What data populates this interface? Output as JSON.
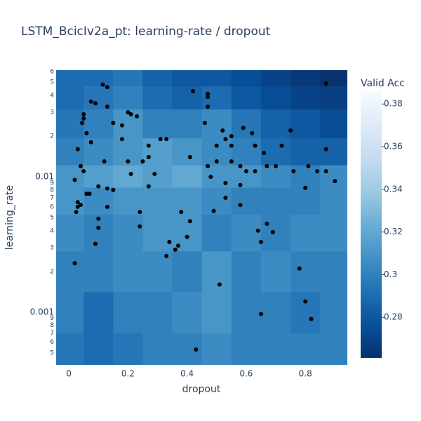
{
  "chart_data": {
    "type": "contour",
    "title": "LSTM_BcicIv2a_pt: learning-rate / dropout",
    "x_label": "dropout",
    "y_label": "learning_rate",
    "colorbar_title": "Valid Acc",
    "xlim": [
      -0.043,
      0.942
    ],
    "xticks": [
      0,
      0.2,
      0.4,
      0.6,
      0.8
    ],
    "ylim": [
      0.000408,
      0.0614
    ],
    "y_log": true,
    "yticks": [
      {
        "value": 0.0005,
        "label": "5"
      },
      {
        "value": 0.0006,
        "label": "6"
      },
      {
        "value": 0.0007,
        "label": "7"
      },
      {
        "value": 0.0008,
        "label": "8"
      },
      {
        "value": 0.0009,
        "label": "9"
      },
      0.001,
      {
        "value": 0.002,
        "label": "2"
      },
      {
        "value": 0.003,
        "label": "3"
      },
      {
        "value": 0.004,
        "label": "4"
      },
      {
        "value": 0.005,
        "label": "5"
      },
      {
        "value": 0.006,
        "label": "6"
      },
      {
        "value": 0.007,
        "label": "7"
      },
      {
        "value": 0.008,
        "label": "8"
      },
      {
        "value": 0.009,
        "label": "9"
      },
      0.01,
      {
        "value": 0.02,
        "label": "2"
      },
      {
        "value": 0.03,
        "label": "3"
      },
      {
        "value": 0.04,
        "label": "4"
      },
      {
        "value": 0.05,
        "label": "5"
      },
      {
        "value": 0.06,
        "label": "6"
      }
    ],
    "zlim": [
      0.261,
      0.386
    ],
    "zticks": [
      0.28,
      0.3,
      0.32,
      0.34,
      0.36,
      0.38
    ],
    "colorscale": [
      "#08306b",
      "#08519c",
      "#2171b5",
      "#4292c6",
      "#6baed6",
      "#9ecae1",
      "#c6dbef",
      "#deebf7",
      "#f7fbff"
    ],
    "contour": {
      "x": [
        0,
        0.1,
        0.2,
        0.3,
        0.4,
        0.5,
        0.6,
        0.7,
        0.8,
        0.9
      ],
      "y": [
        0.0005,
        0.001,
        0.002,
        0.004,
        0.007,
        0.01,
        0.015,
        0.025,
        0.04,
        0.055
      ],
      "z": [
        [
          0.295,
          0.29,
          0.295,
          0.3,
          0.3,
          0.305,
          0.3,
          0.3,
          0.3,
          0.3
        ],
        [
          0.3,
          0.29,
          0.3,
          0.3,
          0.305,
          0.31,
          0.3,
          0.3,
          0.295,
          0.3
        ],
        [
          0.3,
          0.3,
          0.305,
          0.305,
          0.3,
          0.31,
          0.3,
          0.305,
          0.3,
          0.3
        ],
        [
          0.305,
          0.3,
          0.305,
          0.31,
          0.31,
          0.3,
          0.305,
          0.3,
          0.305,
          0.305
        ],
        [
          0.31,
          0.305,
          0.31,
          0.31,
          0.31,
          0.305,
          0.3,
          0.3,
          0.3,
          0.305
        ],
        [
          0.31,
          0.315,
          0.32,
          0.315,
          0.32,
          0.31,
          0.31,
          0.305,
          0.3,
          0.305
        ],
        [
          0.3,
          0.305,
          0.31,
          0.315,
          0.31,
          0.305,
          0.3,
          0.29,
          0.285,
          0.285
        ],
        [
          0.295,
          0.3,
          0.31,
          0.3,
          0.3,
          0.305,
          0.295,
          0.285,
          0.28,
          0.275
        ],
        [
          0.29,
          0.295,
          0.3,
          0.29,
          0.285,
          0.29,
          0.28,
          0.275,
          0.27,
          0.268
        ],
        [
          0.29,
          0.29,
          0.295,
          0.285,
          0.28,
          0.28,
          0.275,
          0.27,
          0.265,
          0.262
        ]
      ]
    },
    "points": {
      "color": "#000000",
      "x": [
        0.115,
        0.13,
        0.075,
        0.09,
        0.13,
        0.05,
        0.05,
        0.045,
        0.15,
        0.18,
        0.2,
        0.21,
        0.23,
        0.06,
        0.18,
        0.31,
        0.33,
        0.075,
        0.03,
        0.27,
        0.42,
        0.47,
        0.47,
        0.47,
        0.46,
        0.52,
        0.59,
        0.62,
        0.5,
        0.55,
        0.53,
        0.55,
        0.63,
        0.66,
        0.72,
        0.75,
        0.87,
        0.87,
        0.04,
        0.12,
        0.2,
        0.25,
        0.27,
        0.41,
        0.47,
        0.5,
        0.55,
        0.58,
        0.6,
        0.63,
        0.67,
        0.7,
        0.76,
        0.81,
        0.84,
        0.87,
        0.9,
        0.8,
        0.05,
        0.02,
        0.21,
        0.29,
        0.48,
        0.53,
        0.58,
        0.1,
        0.13,
        0.15,
        0.27,
        0.07,
        0.06,
        0.03,
        0.03,
        0.04,
        0.025,
        0.13,
        0.24,
        0.38,
        0.49,
        0.53,
        0.58,
        0.1,
        0.1,
        0.41,
        0.24,
        0.67,
        0.64,
        0.69,
        0.09,
        0.34,
        0.37,
        0.36,
        0.33,
        0.4,
        0.65,
        0.78,
        0.02,
        0.51,
        0.8,
        0.65,
        0.82,
        0.43
      ],
      "y": [
        0.048,
        0.046,
        0.036,
        0.035,
        0.033,
        0.029,
        0.027,
        0.025,
        0.025,
        0.024,
        0.03,
        0.029,
        0.028,
        0.021,
        0.019,
        0.019,
        0.019,
        0.018,
        0.016,
        0.017,
        0.043,
        0.033,
        0.041,
        0.039,
        0.025,
        0.022,
        0.023,
        0.021,
        0.017,
        0.017,
        0.019,
        0.02,
        0.017,
        0.015,
        0.017,
        0.022,
        0.016,
        0.049,
        0.012,
        0.013,
        0.013,
        0.013,
        0.014,
        0.014,
        0.012,
        0.013,
        0.013,
        0.012,
        0.011,
        0.011,
        0.012,
        0.012,
        0.011,
        0.012,
        0.011,
        0.011,
        0.0093,
        0.0083,
        0.011,
        0.0095,
        0.0105,
        0.0105,
        0.01,
        0.009,
        0.0087,
        0.0085,
        0.0082,
        0.008,
        0.0085,
        0.0075,
        0.0075,
        0.0065,
        0.006,
        0.0062,
        0.0055,
        0.006,
        0.0055,
        0.0055,
        0.0056,
        0.007,
        0.0062,
        0.0049,
        0.0042,
        0.0047,
        0.0043,
        0.0045,
        0.004,
        0.0039,
        0.0032,
        0.0033,
        0.0031,
        0.0029,
        0.0026,
        0.0036,
        0.0033,
        0.0021,
        0.0023,
        0.0016,
        0.0012,
        0.00097,
        0.00089,
        0.00053
      ]
    }
  }
}
